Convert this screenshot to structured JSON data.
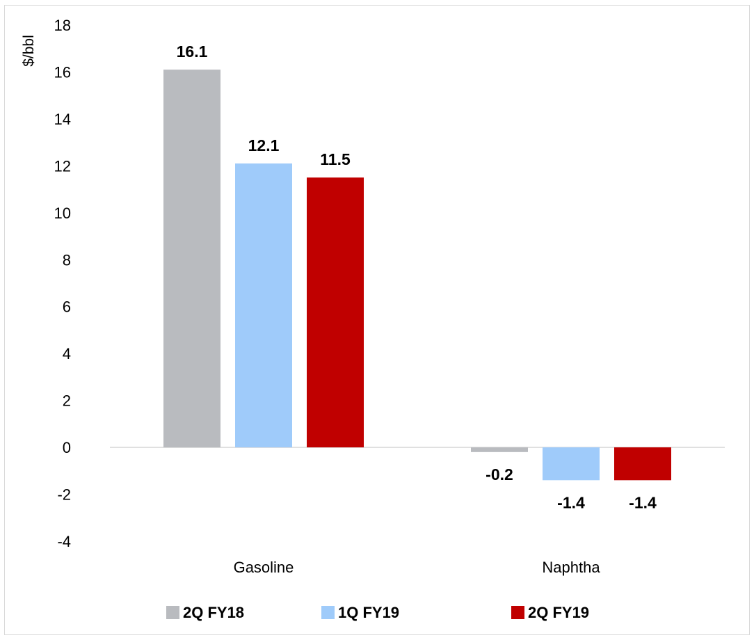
{
  "chart_data": {
    "type": "bar",
    "title": "",
    "xlabel": "",
    "ylabel": "$/bbl",
    "ylim": [
      -4,
      18
    ],
    "yticks": [
      18,
      16,
      14,
      12,
      10,
      8,
      6,
      4,
      2,
      0,
      -2,
      -4
    ],
    "grid": false,
    "legend_position": "bottom",
    "categories": [
      "Gasoline",
      "Naphtha"
    ],
    "series": [
      {
        "name": "2Q FY18",
        "color": "#b9bbbf",
        "values": [
          16.1,
          -0.2
        ],
        "labels": [
          "16.1",
          "-0.2"
        ]
      },
      {
        "name": "1Q FY19",
        "color": "#9fcbfa",
        "values": [
          12.1,
          -1.4
        ],
        "labels": [
          "12.1",
          "-1.4"
        ]
      },
      {
        "name": "2Q FY19",
        "color": "#c00000",
        "values": [
          11.5,
          -1.4
        ],
        "labels": [
          "11.5",
          "-1.4"
        ]
      }
    ]
  }
}
